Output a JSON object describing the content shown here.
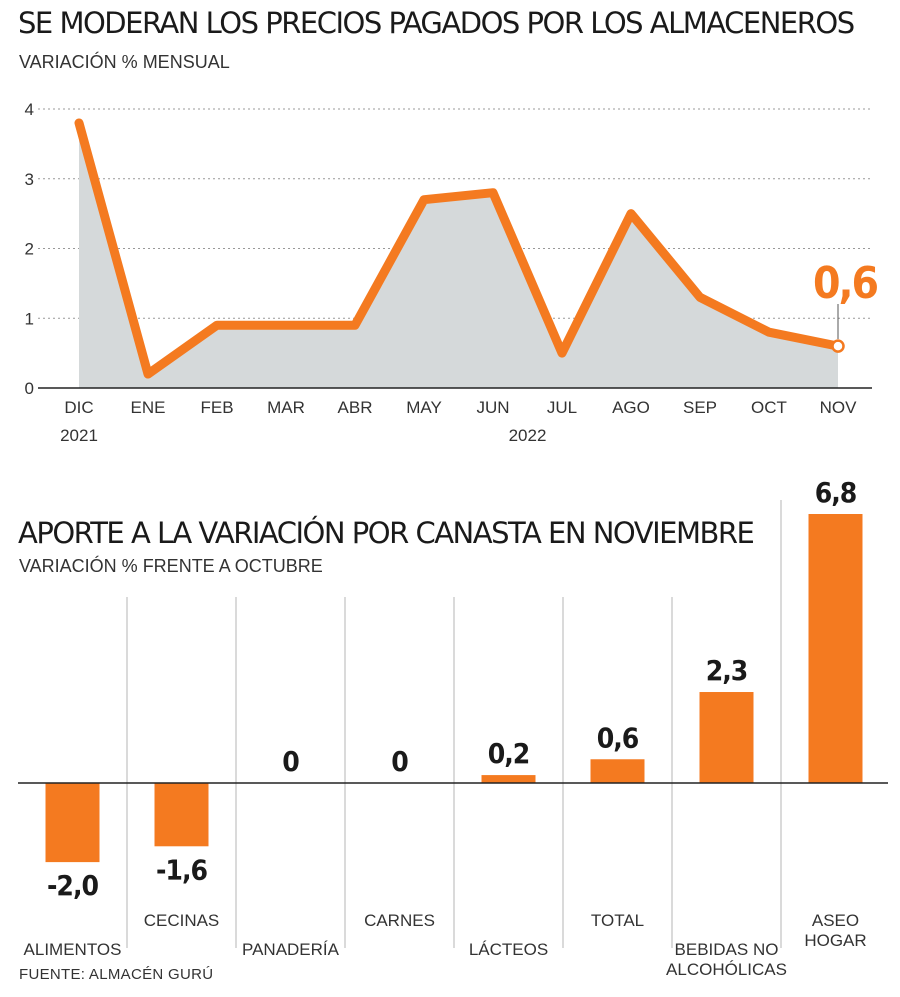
{
  "colors": {
    "accent": "#f47a20",
    "area": "#d5d9da",
    "text": "#1a1a1a",
    "grid": "#999999"
  },
  "line_chart": {
    "title": "SE MODERAN LOS PRECIOS PAGADOS POR LOS ALMACENEROS",
    "subtitle": "VARIACIÓN % MENSUAL"
  },
  "bar_chart": {
    "title": "APORTE A LA VARIACIÓN POR CANASTA EN NOVIEMBRE",
    "subtitle": "VARIACIÓN % FRENTE A OCTUBRE"
  },
  "source": "FUENTE: ALMACÉN GURÚ",
  "chart_data": [
    {
      "type": "area",
      "title": "SE MODERAN LOS PRECIOS PAGADOS POR LOS ALMACENEROS",
      "subtitle": "VARIACIÓN % MENSUAL",
      "categories": [
        "DIC",
        "ENE",
        "FEB",
        "MAR",
        "ABR",
        "MAY",
        "JUN",
        "JUL",
        "AGO",
        "SEP",
        "OCT",
        "NOV"
      ],
      "year_labels": [
        "2021",
        "2022"
      ],
      "values": [
        3.8,
        0.2,
        0.9,
        0.9,
        0.9,
        2.7,
        2.8,
        0.5,
        2.5,
        1.3,
        0.8,
        0.6
      ],
      "highlight_label": "0,6",
      "y_ticks": [
        "0",
        "1",
        "2",
        "3",
        "4"
      ],
      "ylim": [
        0,
        4
      ],
      "grid": true
    },
    {
      "type": "bar",
      "title": "APORTE A LA VARIACIÓN POR CANASTA EN NOVIEMBRE",
      "subtitle": "VARIACIÓN % FRENTE A OCTUBRE",
      "categories": [
        [
          "ALIMENTOS"
        ],
        [
          "CECINAS"
        ],
        [
          "PANADERÍA"
        ],
        [
          "CARNES"
        ],
        [
          "LÁCTEOS"
        ],
        [
          "TOTAL"
        ],
        [
          "BEBIDAS NO",
          "ALCOHÓLICAS"
        ],
        [
          "ASEO",
          "HOGAR"
        ]
      ],
      "values": [
        -2.0,
        -1.6,
        0,
        0,
        0.2,
        0.6,
        2.3,
        6.8
      ],
      "value_labels": [
        "-2,0",
        "-1,6",
        "0",
        "0",
        "0,2",
        "0,6",
        "2,3",
        "6,8"
      ],
      "ylim": [
        -2.0,
        6.8
      ]
    }
  ]
}
